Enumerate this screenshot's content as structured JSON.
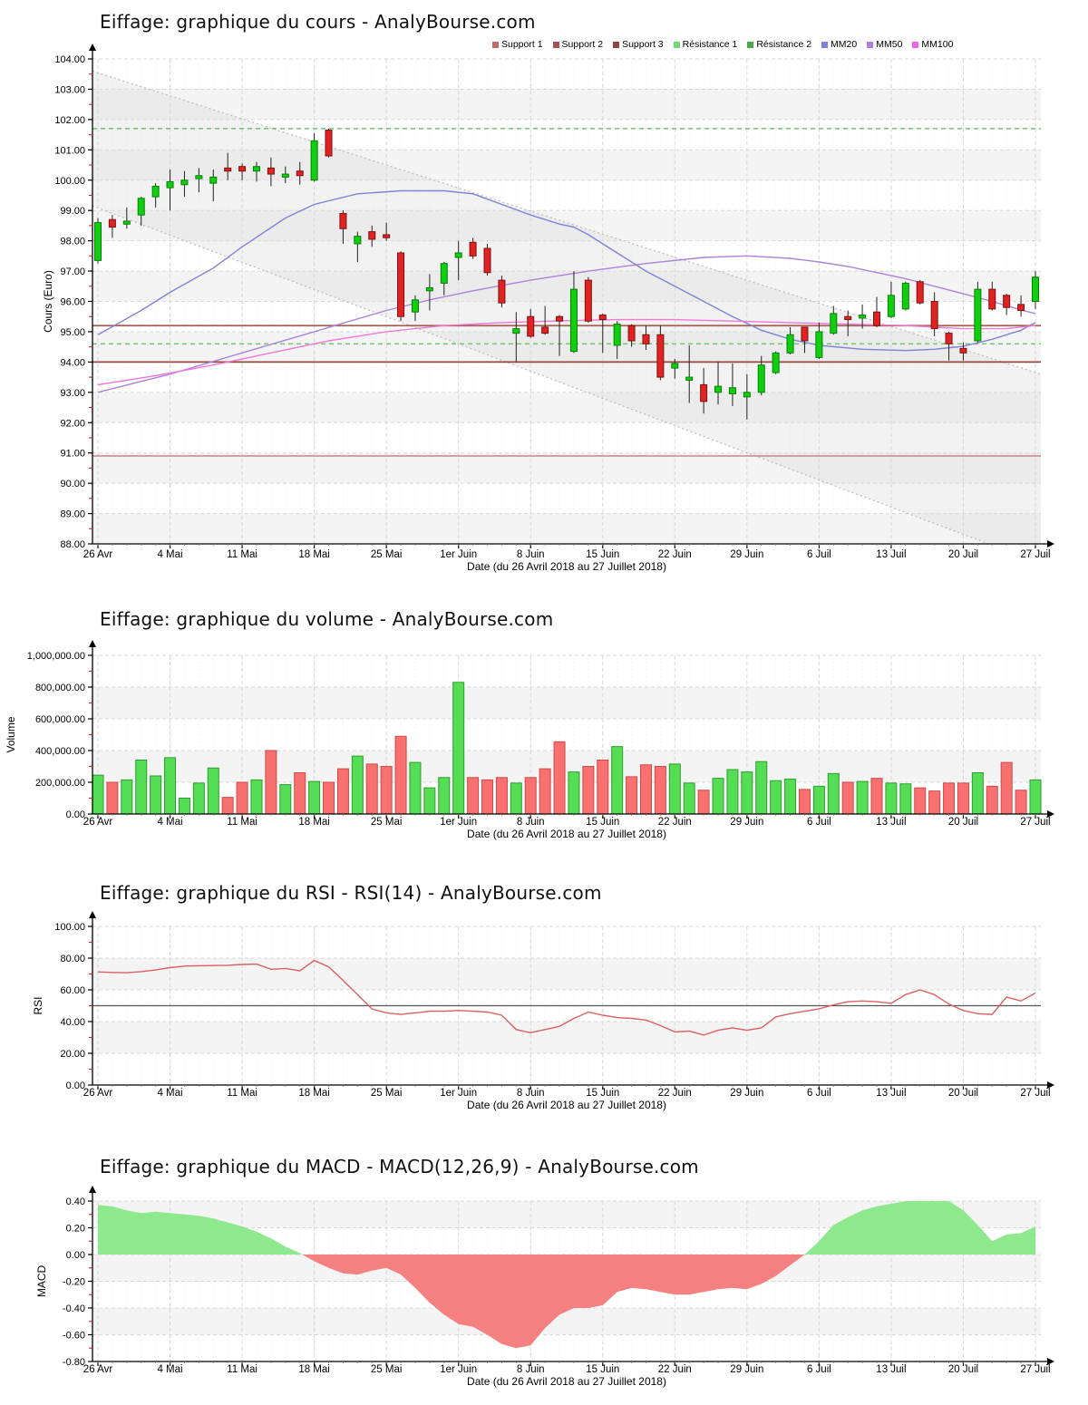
{
  "site": "AnalyBourse.com",
  "instrument": "Eiffage",
  "x_axis": {
    "title": "Date (du 26 Avril 2018 au 27 Juillet 2018)",
    "tick_labels": [
      "26 Avr",
      "4 Mai",
      "11 Mai",
      "18 Mai",
      "25 Mai",
      "1er Juin",
      "8 Juin",
      "15 Juin",
      "22 Juin",
      "29 Juin",
      "6 Juil",
      "13 Juil",
      "20 Juil",
      "27 Juil"
    ],
    "tick_indices": [
      0,
      5,
      10,
      15,
      20,
      25,
      30,
      35,
      40,
      45,
      50,
      55,
      60,
      65
    ],
    "sessions": [
      "26/04",
      "27/04",
      "30/04",
      "02/05",
      "03/05",
      "04/05",
      "07/05",
      "08/05",
      "09/05",
      "10/05",
      "11/05",
      "14/05",
      "15/05",
      "16/05",
      "17/05",
      "18/05",
      "21/05",
      "22/05",
      "23/05",
      "24/05",
      "25/05",
      "28/05",
      "29/05",
      "30/05",
      "31/05",
      "01/06",
      "04/06",
      "05/06",
      "06/06",
      "07/06",
      "08/06",
      "11/06",
      "12/06",
      "13/06",
      "14/06",
      "15/06",
      "18/06",
      "19/06",
      "20/06",
      "21/06",
      "22/06",
      "25/06",
      "26/06",
      "27/06",
      "28/06",
      "29/06",
      "02/07",
      "03/07",
      "04/07",
      "05/07",
      "06/07",
      "09/07",
      "10/07",
      "11/07",
      "12/07",
      "13/07",
      "16/07",
      "17/07",
      "18/07",
      "19/07",
      "20/07",
      "23/07",
      "24/07",
      "25/07",
      "26/07",
      "27/07"
    ]
  },
  "charts": [
    {
      "title": "Eiffage: graphique du cours - AnalyBourse.com",
      "y_axis_title": "Cours (Euro)"
    },
    {
      "title": "Eiffage: graphique du volume - AnalyBourse.com",
      "y_axis_title": "Volume"
    },
    {
      "title": "Eiffage: graphique du RSI - RSI(14) - AnalyBourse.com",
      "y_axis_title": "RSI"
    },
    {
      "title": "Eiffage: graphique du MACD - MACD(12,26,9) - AnalyBourse.com",
      "y_axis_title": "MACD"
    }
  ],
  "legend": {
    "items": [
      {
        "label": "Support 1",
        "color": "#bf6969"
      },
      {
        "label": "Support 2",
        "color": "#a65151"
      },
      {
        "label": "Support 3",
        "color": "#8c4646"
      },
      {
        "label": "Résistance 1",
        "color": "#72d872"
      },
      {
        "label": "Résistance 2",
        "color": "#4aa84a"
      },
      {
        "label": "MM20",
        "color": "#7f7fe0"
      },
      {
        "label": "MM50",
        "color": "#ae7fe0"
      },
      {
        "label": "MM100",
        "color": "#ef63ef"
      }
    ]
  },
  "colors": {
    "candle_up_fill": "#0fcf0f",
    "candle_up_stroke": "#067f06",
    "candle_down_fill": "#e02222",
    "candle_down_stroke": "#801111",
    "volume_up_fill": "#55dd55",
    "volume_up_stroke": "#2d9e2d",
    "volume_down_fill": "#f87070",
    "volume_down_stroke": "#cf4a4a",
    "rsi_line": "#dd6060",
    "rsi_midline": "#555555",
    "macd_positive": "#8ee88e",
    "macd_negative": "#f48080",
    "mm20_line": "#8181d8",
    "mm50_line": "#ab84dc",
    "mm100_line": "#f478d8",
    "band_gray": "#f4f4f4",
    "grid": "#d8d8d8",
    "minor_tick": "#cc2222",
    "channel_fill": "#dcdcdc",
    "channel_line": "#bbbbbb"
  },
  "chart_data": [
    {
      "type": "candlestick",
      "title": "Eiffage: graphique du cours - AnalyBourse.com",
      "ylabel": "Cours (Euro)",
      "ylim": [
        88,
        104
      ],
      "y_major_step": 1,
      "candles_ohlc": [
        [
          97.35,
          98.75,
          97.25,
          98.6
        ],
        [
          98.7,
          98.85,
          98.1,
          98.45
        ],
        [
          98.55,
          99.1,
          98.4,
          98.65
        ],
        [
          98.85,
          99.45,
          98.5,
          99.4
        ],
        [
          99.45,
          99.9,
          99.1,
          99.8
        ],
        [
          99.75,
          100.35,
          99.0,
          99.95
        ],
        [
          99.85,
          100.3,
          99.45,
          100.0
        ],
        [
          100.05,
          100.4,
          99.6,
          100.15
        ],
        [
          99.9,
          100.35,
          99.3,
          100.1
        ],
        [
          100.4,
          100.9,
          100.0,
          100.3
        ],
        [
          100.45,
          100.55,
          100.0,
          100.3
        ],
        [
          100.3,
          100.6,
          99.95,
          100.45
        ],
        [
          100.4,
          100.75,
          99.8,
          100.2
        ],
        [
          100.1,
          100.45,
          99.9,
          100.2
        ],
        [
          100.3,
          100.6,
          99.85,
          100.15
        ],
        [
          100.0,
          101.55,
          99.95,
          101.3
        ],
        [
          101.65,
          101.7,
          100.75,
          100.8
        ],
        [
          98.9,
          99.0,
          97.9,
          98.4
        ],
        [
          97.9,
          98.3,
          97.3,
          98.15
        ],
        [
          98.3,
          98.5,
          97.8,
          98.05
        ],
        [
          98.2,
          98.6,
          98.0,
          98.1
        ],
        [
          97.6,
          97.65,
          95.35,
          95.5
        ],
        [
          95.65,
          96.2,
          95.35,
          96.05
        ],
        [
          96.35,
          96.9,
          95.7,
          96.45
        ],
        [
          96.6,
          97.3,
          96.2,
          97.25
        ],
        [
          97.45,
          98.0,
          96.7,
          97.6
        ],
        [
          97.95,
          98.1,
          97.4,
          97.5
        ],
        [
          97.75,
          97.9,
          96.85,
          96.95
        ],
        [
          96.7,
          96.85,
          95.8,
          95.95
        ],
        [
          94.95,
          95.65,
          94.0,
          95.1
        ],
        [
          95.5,
          95.75,
          94.8,
          94.85
        ],
        [
          95.15,
          95.85,
          94.9,
          94.95
        ],
        [
          95.5,
          95.55,
          94.2,
          95.35
        ],
        [
          94.35,
          97.0,
          94.3,
          96.4
        ],
        [
          96.7,
          96.8,
          95.3,
          95.35
        ],
        [
          95.55,
          95.6,
          94.3,
          95.4
        ],
        [
          94.55,
          95.35,
          94.1,
          95.25
        ],
        [
          95.2,
          95.25,
          94.5,
          94.7
        ],
        [
          94.9,
          95.2,
          94.4,
          94.6
        ],
        [
          94.9,
          95.2,
          93.4,
          93.5
        ],
        [
          93.8,
          94.1,
          93.45,
          93.95
        ],
        [
          93.4,
          94.55,
          92.65,
          93.5
        ],
        [
          93.25,
          93.8,
          92.3,
          92.7
        ],
        [
          93.0,
          94.0,
          92.6,
          93.2
        ],
        [
          92.95,
          93.95,
          92.55,
          93.15
        ],
        [
          92.85,
          93.6,
          92.1,
          93.0
        ],
        [
          93.0,
          94.2,
          92.9,
          93.9
        ],
        [
          93.65,
          94.35,
          93.6,
          94.3
        ],
        [
          94.3,
          95.15,
          94.25,
          94.9
        ],
        [
          95.15,
          95.15,
          94.3,
          94.7
        ],
        [
          94.15,
          95.3,
          94.1,
          95.0
        ],
        [
          94.95,
          95.85,
          94.9,
          95.6
        ],
        [
          95.5,
          95.7,
          94.85,
          95.4
        ],
        [
          95.45,
          95.9,
          95.1,
          95.55
        ],
        [
          95.65,
          96.15,
          95.15,
          95.2
        ],
        [
          95.5,
          96.65,
          95.45,
          96.2
        ],
        [
          95.75,
          96.65,
          95.7,
          96.6
        ],
        [
          96.65,
          96.7,
          95.9,
          95.95
        ],
        [
          96.0,
          96.3,
          94.85,
          95.1
        ],
        [
          94.95,
          95.0,
          94.05,
          94.6
        ],
        [
          94.45,
          94.65,
          94.05,
          94.3
        ],
        [
          94.7,
          96.65,
          94.65,
          96.4
        ],
        [
          96.4,
          96.65,
          95.7,
          95.75
        ],
        [
          96.2,
          96.25,
          95.55,
          95.8
        ],
        [
          95.9,
          96.2,
          95.5,
          95.7
        ],
        [
          96.0,
          97.0,
          95.75,
          96.8
        ]
      ],
      "support_levels": [
        {
          "name": "Support 1",
          "value": 95.2,
          "color": "#a2614f",
          "width": 1.8
        },
        {
          "name": "Support 2",
          "value": 94.0,
          "color": "#93493f",
          "width": 1.8
        },
        {
          "name": "Support 3",
          "value": 90.9,
          "color": "#c1716a",
          "width": 1.2
        }
      ],
      "resistance_levels": [
        {
          "name": "Résistance 1",
          "value": 94.6,
          "color": "#6cc46c"
        },
        {
          "name": "Résistance 2",
          "value": 101.7,
          "color": "#58b358"
        }
      ],
      "moving_averages": [
        {
          "name": "MM20",
          "points": [
            [
              0,
              94.9
            ],
            [
              3,
              95.7
            ],
            [
              5,
              96.3
            ],
            [
              8,
              97.1
            ],
            [
              10,
              97.8
            ],
            [
              13,
              98.75
            ],
            [
              15,
              99.2
            ],
            [
              18,
              99.55
            ],
            [
              21,
              99.65
            ],
            [
              24,
              99.65
            ],
            [
              26,
              99.55
            ],
            [
              28,
              99.2
            ],
            [
              30,
              98.85
            ],
            [
              32,
              98.55
            ],
            [
              33,
              98.45
            ],
            [
              34,
              98.2
            ],
            [
              35,
              97.9
            ],
            [
              36,
              97.6
            ],
            [
              37,
              97.3
            ],
            [
              38,
              97.0
            ],
            [
              40,
              96.5
            ],
            [
              42,
              96.0
            ],
            [
              44,
              95.5
            ],
            [
              46,
              95.05
            ],
            [
              48,
              94.75
            ],
            [
              50,
              94.55
            ],
            [
              53,
              94.42
            ],
            [
              56,
              94.38
            ],
            [
              58,
              94.42
            ],
            [
              60,
              94.52
            ],
            [
              62,
              94.75
            ],
            [
              64,
              95.05
            ],
            [
              65,
              95.3
            ]
          ]
        },
        {
          "name": "MM50",
          "points": [
            [
              0,
              93.0
            ],
            [
              5,
              93.6
            ],
            [
              10,
              94.3
            ],
            [
              15,
              95.0
            ],
            [
              20,
              95.7
            ],
            [
              23,
              96.05
            ],
            [
              26,
              96.35
            ],
            [
              30,
              96.7
            ],
            [
              34,
              97.0
            ],
            [
              38,
              97.25
            ],
            [
              42,
              97.45
            ],
            [
              45,
              97.5
            ],
            [
              48,
              97.42
            ],
            [
              50,
              97.3
            ],
            [
              52,
              97.15
            ],
            [
              54,
              96.95
            ],
            [
              56,
              96.75
            ],
            [
              58,
              96.5
            ],
            [
              60,
              96.25
            ],
            [
              62,
              96.0
            ],
            [
              64,
              95.72
            ],
            [
              65,
              95.6
            ]
          ]
        },
        {
          "name": "MM100",
          "points": [
            [
              0,
              93.25
            ],
            [
              4,
              93.55
            ],
            [
              8,
              93.9
            ],
            [
              12,
              94.3
            ],
            [
              16,
              94.7
            ],
            [
              20,
              95.0
            ],
            [
              24,
              95.2
            ],
            [
              28,
              95.3
            ],
            [
              32,
              95.36
            ],
            [
              36,
              95.4
            ],
            [
              40,
              95.4
            ],
            [
              44,
              95.35
            ],
            [
              48,
              95.3
            ],
            [
              52,
              95.25
            ],
            [
              56,
              95.2
            ],
            [
              60,
              95.1
            ],
            [
              63,
              95.1
            ],
            [
              65,
              95.2
            ]
          ]
        }
      ],
      "trend_channel": {
        "upper_line": {
          "start_value": 103.6,
          "end_value": 93.6
        },
        "lower_line": {
          "start_value": 99.15,
          "end_value": 87.35
        },
        "style": "dotted-gray-shaded"
      }
    },
    {
      "type": "bar",
      "title": "Eiffage: graphique du volume - AnalyBourse.com",
      "ylabel": "Volume",
      "ylim": [
        0,
        1000000
      ],
      "y_major_step": 200000,
      "values": [
        245000,
        200000,
        215000,
        340000,
        240000,
        355000,
        100000,
        195000,
        290000,
        105000,
        200000,
        215000,
        400000,
        185000,
        260000,
        205000,
        200000,
        285000,
        365000,
        315000,
        300000,
        490000,
        325000,
        165000,
        230000,
        830000,
        230000,
        215000,
        230000,
        195000,
        230000,
        285000,
        455000,
        265000,
        300000,
        340000,
        425000,
        235000,
        310000,
        300000,
        315000,
        195000,
        150000,
        225000,
        280000,
        265000,
        330000,
        210000,
        220000,
        155000,
        175000,
        255000,
        200000,
        205000,
        225000,
        195000,
        190000,
        165000,
        145000,
        195000,
        195000,
        260000,
        175000,
        325000,
        150000,
        215000
      ]
    },
    {
      "type": "line",
      "title": "Eiffage: graphique du RSI - RSI(14) - AnalyBourse.com",
      "indicator": "RSI(14)",
      "ylabel": "RSI",
      "ylim": [
        0,
        100
      ],
      "y_major_step": 20,
      "midline": 50,
      "values": [
        71.3,
        71.0,
        70.8,
        71.5,
        72.5,
        74.0,
        75.0,
        75.2,
        75.3,
        75.5,
        76.0,
        76.2,
        73.0,
        73.5,
        72.0,
        78.5,
        74.5,
        66.0,
        57.0,
        48.0,
        45.5,
        44.5,
        45.5,
        46.5,
        46.5,
        47.0,
        46.5,
        46.0,
        44.0,
        35.0,
        33.0,
        35.0,
        37.0,
        42.0,
        46.0,
        44.0,
        42.5,
        42.0,
        41.0,
        37.5,
        33.5,
        34.0,
        31.5,
        34.5,
        36.0,
        34.5,
        36.0,
        43.0,
        45.0,
        46.5,
        48.0,
        50.5,
        52.5,
        53.0,
        52.5,
        51.5,
        57.0,
        60.0,
        57.0,
        51.0,
        47.0,
        45.0,
        44.5,
        55.5,
        53.0,
        58.0
      ]
    },
    {
      "type": "area",
      "title": "Eiffage: graphique du MACD - MACD(12,26,9) - AnalyBourse.com",
      "indicator": "MACD(12,26,9)",
      "ylabel": "MACD",
      "ylim": [
        -0.8,
        0.4
      ],
      "y_major_step": 0.2,
      "values": [
        0.37,
        0.36,
        0.33,
        0.31,
        0.32,
        0.31,
        0.3,
        0.29,
        0.27,
        0.24,
        0.21,
        0.17,
        0.12,
        0.06,
        0.01,
        -0.05,
        -0.1,
        -0.14,
        -0.15,
        -0.12,
        -0.1,
        -0.15,
        -0.25,
        -0.36,
        -0.45,
        -0.52,
        -0.54,
        -0.6,
        -0.67,
        -0.7,
        -0.68,
        -0.55,
        -0.45,
        -0.4,
        -0.4,
        -0.38,
        -0.28,
        -0.25,
        -0.26,
        -0.28,
        -0.3,
        -0.3,
        -0.28,
        -0.26,
        -0.25,
        -0.26,
        -0.22,
        -0.16,
        -0.08,
        0.0,
        0.1,
        0.22,
        0.28,
        0.33,
        0.36,
        0.38,
        0.4,
        0.44,
        0.43,
        0.4,
        0.33,
        0.22,
        0.1,
        0.15,
        0.16,
        0.21
      ]
    }
  ]
}
